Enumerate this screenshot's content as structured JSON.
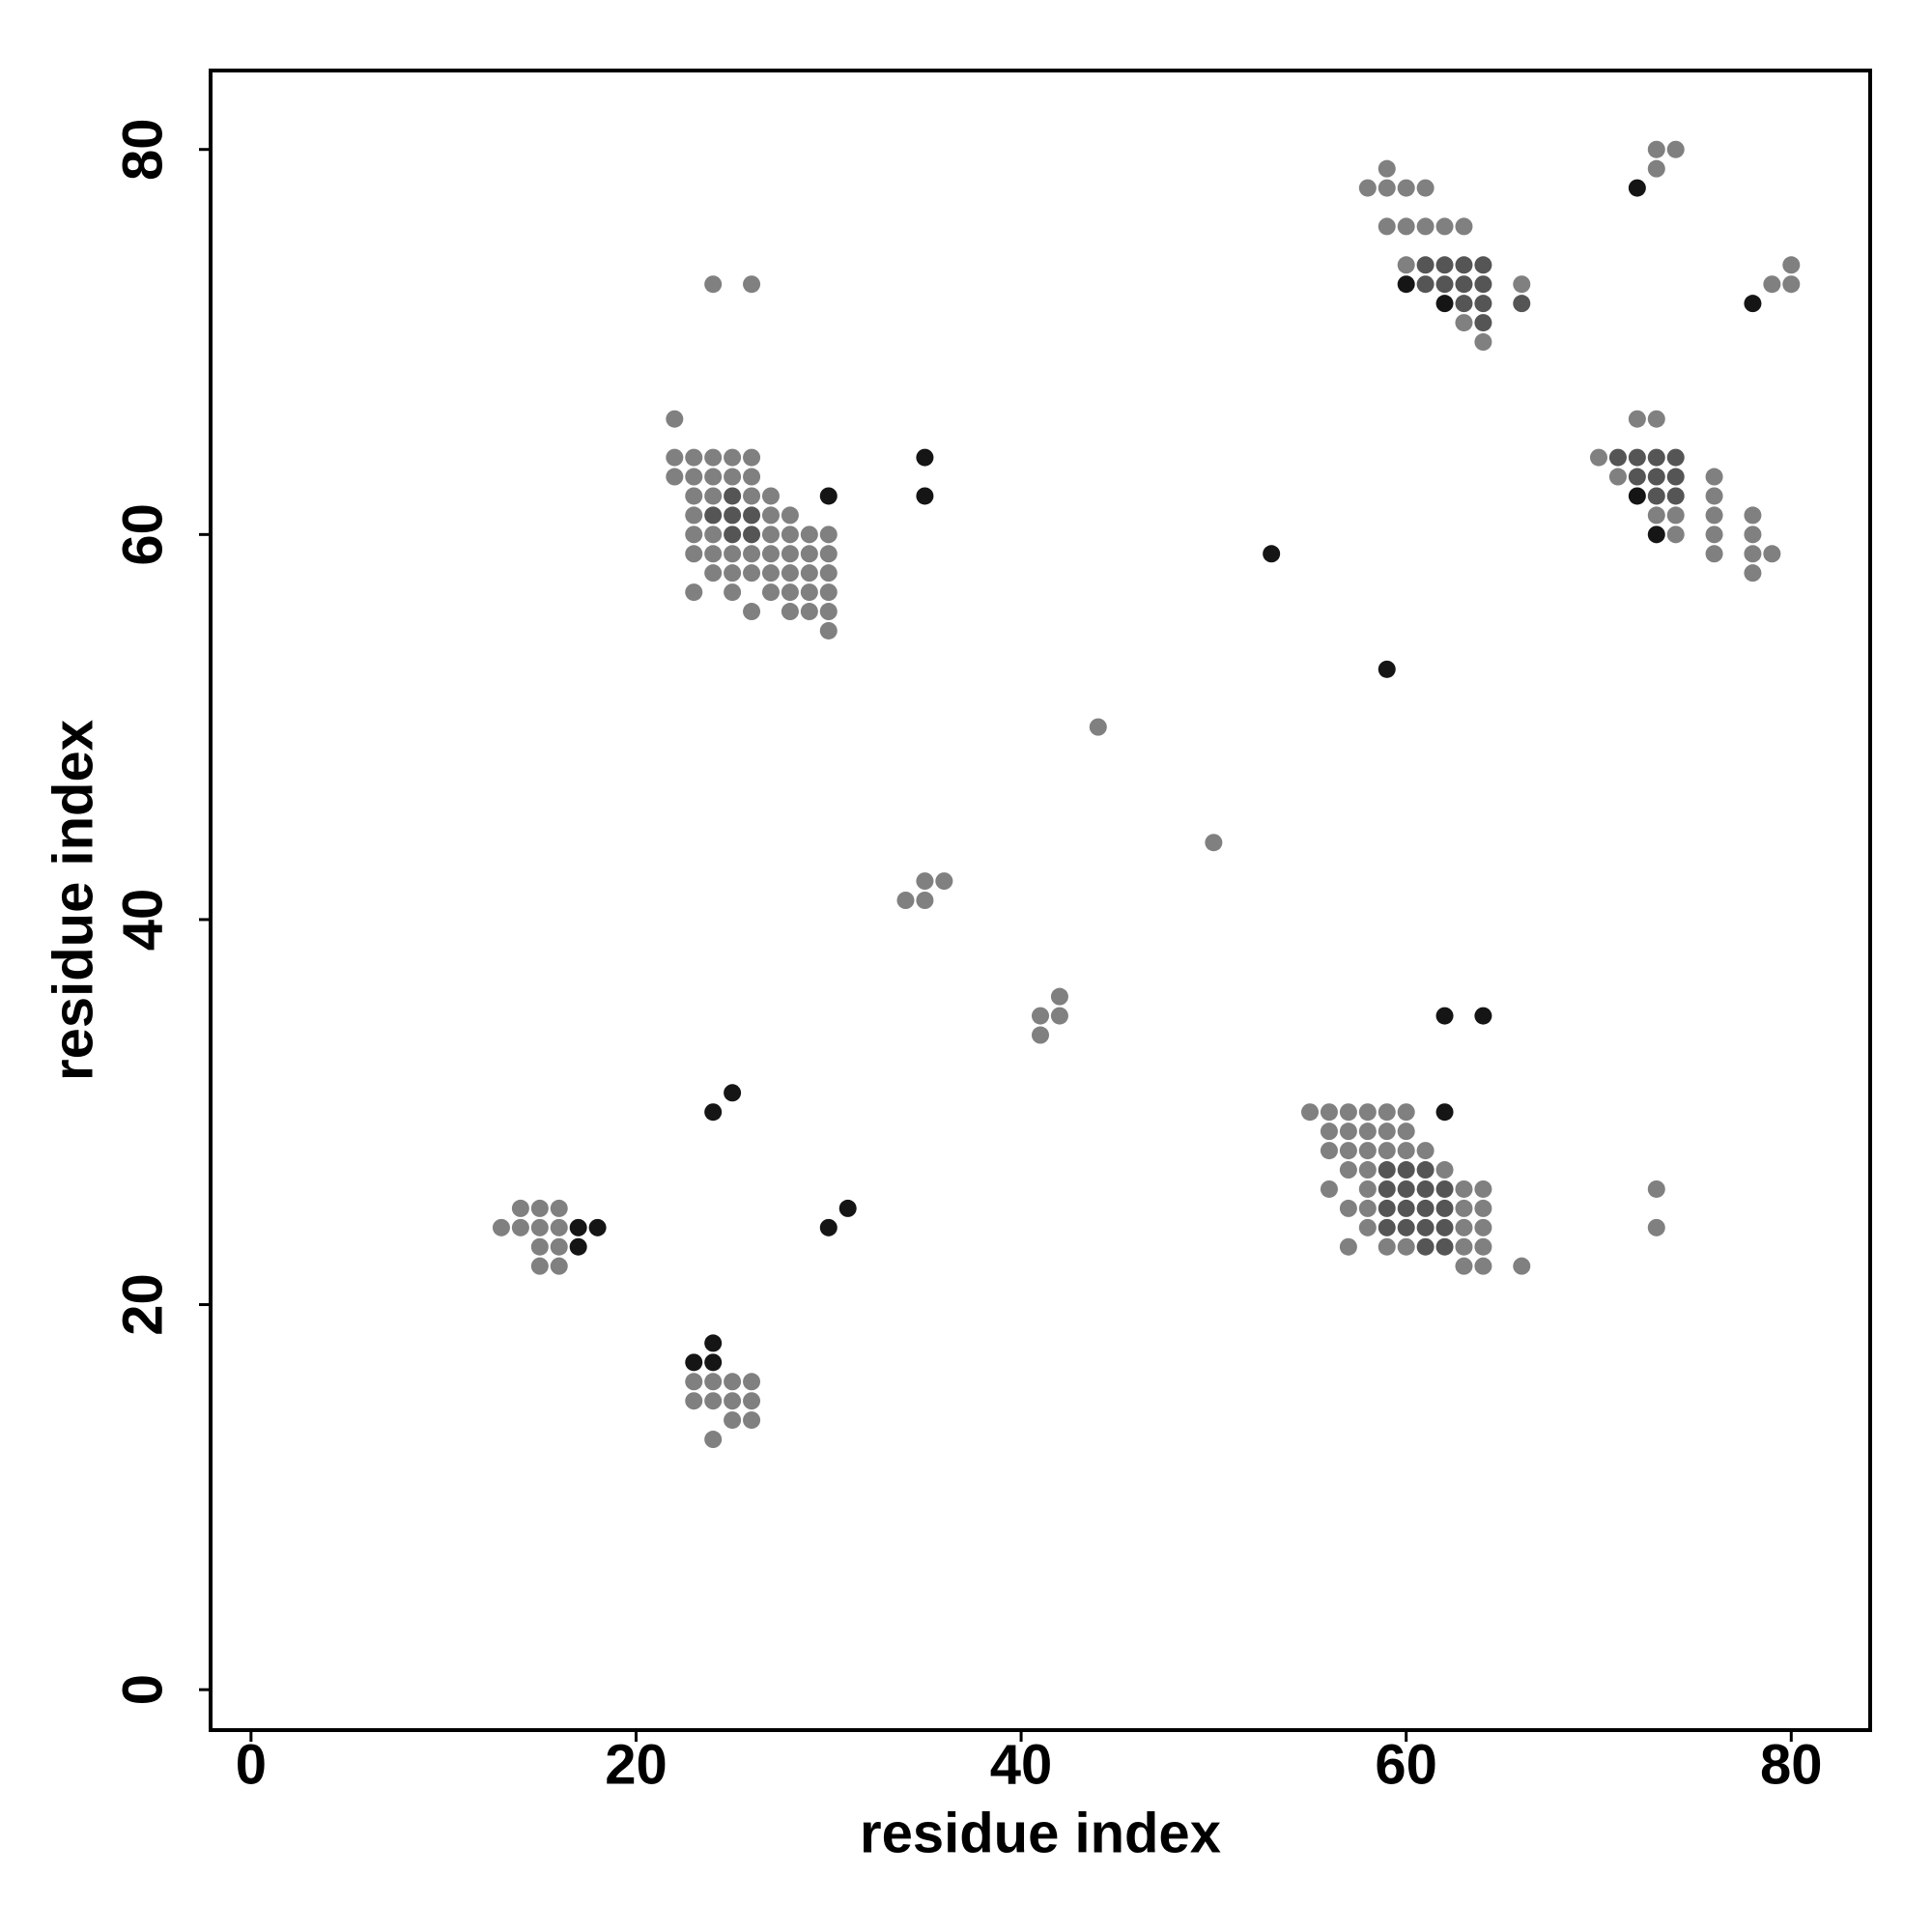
{
  "chart_data": {
    "type": "scatter",
    "xlabel": "residue index",
    "ylabel": "residue index",
    "xlim": [
      -2.1,
      84.1
    ],
    "ylim": [
      -2.1,
      84.1
    ],
    "xticks": [
      0,
      20,
      40,
      60,
      80
    ],
    "yticks": [
      0,
      20,
      40,
      60,
      80
    ],
    "series": [
      {
        "color": "#808080",
        "x": [
          22,
          22,
          23,
          24,
          25,
          26,
          22,
          23,
          24,
          25,
          26,
          23,
          24,
          26,
          27,
          23,
          27,
          28,
          23,
          24,
          27,
          28,
          29,
          30,
          23,
          24,
          25,
          26,
          27,
          28,
          29,
          30,
          24,
          25,
          26,
          27,
          28,
          29,
          30,
          23,
          25,
          27,
          28,
          29,
          30,
          26,
          28,
          29,
          30,
          30,
          24,
          26,
          59,
          58,
          59,
          60,
          61,
          59,
          60,
          61,
          62,
          63,
          60,
          66,
          63,
          64,
          73,
          74,
          73,
          79,
          80,
          80,
          72,
          73,
          70,
          71,
          73,
          74,
          74,
          76,
          76,
          76,
          76,
          76,
          78,
          78,
          78,
          78,
          79,
          44,
          50,
          34,
          35,
          35,
          36,
          41,
          42,
          41,
          42,
          73,
          73,
          55,
          56,
          57,
          58,
          59,
          60,
          56,
          57,
          58,
          59,
          60,
          56,
          57,
          58,
          59,
          60,
          61,
          57,
          58,
          62,
          56,
          58,
          63,
          64,
          57,
          58,
          63,
          64,
          58,
          63,
          64,
          57,
          59,
          60,
          63,
          64,
          63,
          64,
          66,
          14,
          15,
          16,
          13,
          14,
          15,
          16,
          15,
          16,
          15,
          16,
          23,
          24,
          25,
          26,
          23,
          24,
          25,
          26,
          25,
          26,
          24
        ],
        "values": [
          66,
          64,
          64,
          64,
          64,
          64,
          63,
          63,
          63,
          63,
          63,
          62,
          62,
          62,
          62,
          61,
          61,
          61,
          60,
          60,
          60,
          60,
          60,
          60,
          59,
          59,
          59,
          59,
          59,
          59,
          59,
          59,
          58,
          58,
          58,
          58,
          58,
          58,
          58,
          57,
          57,
          57,
          57,
          57,
          57,
          56,
          56,
          56,
          56,
          55,
          73,
          73,
          79,
          78,
          78,
          78,
          78,
          76,
          76,
          76,
          76,
          76,
          74,
          73,
          71,
          70,
          80,
          80,
          79,
          73,
          74,
          73,
          66,
          66,
          64,
          63,
          61,
          61,
          60,
          63,
          62,
          61,
          60,
          59,
          61,
          60,
          59,
          58,
          59,
          50,
          44,
          41,
          41,
          42,
          42,
          35,
          35,
          34,
          36,
          26,
          24,
          30,
          30,
          30,
          30,
          30,
          30,
          29,
          29,
          29,
          29,
          29,
          28,
          28,
          28,
          28,
          28,
          28,
          27,
          27,
          27,
          26,
          26,
          26,
          26,
          25,
          25,
          25,
          25,
          24,
          24,
          24,
          23,
          23,
          23,
          23,
          23,
          22,
          22,
          22,
          25,
          25,
          25,
          24,
          24,
          24,
          24,
          23,
          23,
          22,
          22,
          16,
          16,
          16,
          16,
          15,
          15,
          15,
          15,
          14,
          14,
          13
        ]
      },
      {
        "color": "#555555",
        "x": [
          24,
          25,
          26,
          25,
          26,
          25,
          61,
          62,
          63,
          64,
          61,
          62,
          63,
          64,
          63,
          64,
          66,
          64,
          71,
          72,
          73,
          74,
          72,
          73,
          74,
          73,
          74,
          59,
          60,
          61,
          59,
          60,
          61,
          62,
          59,
          60,
          61,
          62,
          59,
          60,
          61,
          62,
          61,
          62
        ],
        "values": [
          61,
          61,
          61,
          60,
          60,
          62,
          74,
          74,
          74,
          74,
          73,
          73,
          73,
          73,
          72,
          72,
          72,
          71,
          64,
          64,
          64,
          64,
          63,
          63,
          63,
          62,
          62,
          27,
          27,
          27,
          26,
          26,
          26,
          26,
          25,
          25,
          25,
          25,
          24,
          24,
          24,
          24,
          23,
          23
        ]
      },
      {
        "color": "#151515",
        "x": [
          60,
          62,
          72,
          78,
          72,
          73,
          53,
          59,
          62,
          64,
          62,
          35,
          35,
          30,
          24,
          25,
          30,
          31,
          17,
          18,
          17,
          24,
          23,
          24
        ],
        "values": [
          73,
          72,
          78,
          72,
          62,
          60,
          59,
          53,
          35,
          35,
          30,
          64,
          62,
          62,
          30,
          31,
          24,
          25,
          24,
          24,
          23,
          18,
          17,
          17
        ]
      }
    ]
  }
}
